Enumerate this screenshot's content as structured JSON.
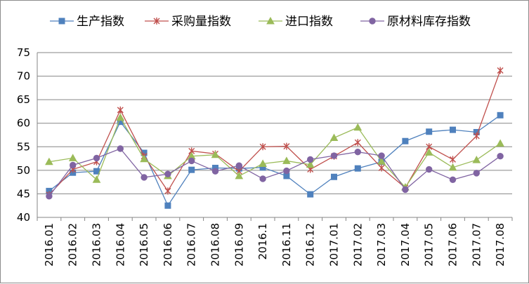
{
  "chart_data": {
    "type": "line",
    "title": "",
    "xlabel": "",
    "ylabel": "",
    "ylim": [
      40,
      75
    ],
    "yticks": [
      40,
      45,
      50,
      55,
      60,
      65,
      70,
      75
    ],
    "grid": true,
    "legend_position": "top",
    "categories": [
      "2016.01",
      "2016.02",
      "2016.03",
      "2016.04",
      "2016.05",
      "2016.06",
      "2016.07",
      "2016.08",
      "2016.09",
      "2016.1",
      "2016.11",
      "2016.12",
      "2017.01",
      "2017.02",
      "2017.03",
      "2017.04",
      "2017.05",
      "2017.06",
      "2017.07",
      "2017.08"
    ],
    "series": [
      {
        "name": "生产指数",
        "color": "#4f81bd",
        "marker": "square",
        "values": [
          45.6,
          49.5,
          49.8,
          60.3,
          53.7,
          42.5,
          50.1,
          50.5,
          50.4,
          50.6,
          48.8,
          44.9,
          48.6,
          50.4,
          51.8,
          56.2,
          58.2,
          58.6,
          58.1,
          61.7
        ]
      },
      {
        "name": "采购量指数",
        "color": "#c0504d",
        "marker": "star",
        "values": [
          44.8,
          50.2,
          51.8,
          62.8,
          53.0,
          45.6,
          54.1,
          53.5,
          49.8,
          55.0,
          55.1,
          50.2,
          53.0,
          55.9,
          50.5,
          46.3,
          55.0,
          52.3,
          57.3,
          71.2
        ]
      },
      {
        "name": "进口指数",
        "color": "#9bbb59",
        "marker": "triangle",
        "values": [
          51.8,
          52.6,
          48.0,
          61.2,
          52.4,
          48.8,
          53.0,
          53.3,
          48.8,
          51.4,
          52.0,
          51.2,
          56.9,
          59.1,
          51.9,
          46.4,
          53.8,
          50.6,
          52.2,
          55.7
        ]
      },
      {
        "name": "原材料库存指数",
        "color": "#8064a2",
        "marker": "circle",
        "values": [
          44.5,
          51.1,
          52.6,
          54.6,
          48.5,
          49.2,
          52.0,
          49.8,
          51.0,
          48.2,
          49.9,
          52.3,
          53.1,
          53.9,
          53.1,
          45.9,
          50.2,
          48.0,
          49.4,
          53.0
        ]
      }
    ]
  }
}
